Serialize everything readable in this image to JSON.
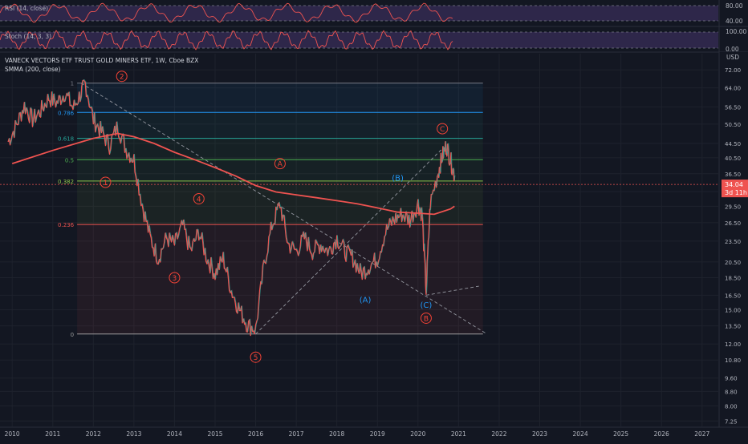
{
  "colors": {
    "background": "#131722",
    "grid": "#1e222d",
    "axis_text": "#b2b5be",
    "candle_up": "#26a69a",
    "candle_down": "#ef5350",
    "smma": "#ef5350",
    "wave_red": "#f44336",
    "wave_blue": "#2196f3",
    "osc_band": "#7e57c2",
    "osc_line": "#ef5350",
    "price_tag": "#ef5350"
  },
  "panes": {
    "rsi": {
      "label": "RSI (14, close)",
      "levels": [
        "80.00",
        "40.00"
      ]
    },
    "stoch": {
      "label": "Stoch (14, 3, 3)",
      "levels": [
        "100.00",
        "0.00"
      ]
    }
  },
  "main": {
    "title": "VANECK VECTORS ETF TRUST GOLD MINERS ETF, 1W, Cboe BZX",
    "indicator": "SMMA (200, close)",
    "currency": "USD",
    "price_label": "34.04",
    "countdown_label": "3d 11h"
  },
  "chart_data": {
    "type": "line",
    "title": "VANECK VECTORS ETF TRUST GOLD MINERS ETF, 1W, Cboe BZX",
    "y_scale": "log",
    "ylim": [
      7.0,
      80.0
    ],
    "xlim": [
      2009.7,
      2027.4
    ],
    "x_ticks": [
      "2010",
      "2011",
      "2012",
      "2013",
      "2014",
      "2015",
      "2016",
      "2017",
      "2018",
      "2019",
      "2020",
      "2021",
      "2022",
      "2023",
      "2024",
      "2025",
      "2026",
      "2027"
    ],
    "y_ticks": [
      "72.00",
      "64.00",
      "56.50",
      "50.50",
      "44.50",
      "40.50",
      "36.50",
      "32.50",
      "29.50",
      "26.50",
      "23.50",
      "20.50",
      "18.50",
      "16.50",
      "15.00",
      "13.50",
      "12.00",
      "10.80",
      "9.60",
      "8.80",
      "8.00",
      "7.25"
    ],
    "price_series": {
      "name": "GDX",
      "x": [
        2009.9,
        2010.1,
        2010.3,
        2010.5,
        2010.7,
        2010.9,
        2011.1,
        2011.3,
        2011.5,
        2011.7,
        2011.8,
        2012.0,
        2012.2,
        2012.4,
        2012.6,
        2012.8,
        2013.0,
        2013.2,
        2013.4,
        2013.6,
        2013.8,
        2014.0,
        2014.2,
        2014.4,
        2014.6,
        2014.8,
        2015.0,
        2015.2,
        2015.4,
        2015.6,
        2015.8,
        2016.0,
        2016.2,
        2016.4,
        2016.6,
        2016.8,
        2017.0,
        2017.2,
        2017.4,
        2017.6,
        2017.8,
        2018.0,
        2018.2,
        2018.4,
        2018.6,
        2018.8,
        2019.0,
        2019.2,
        2019.4,
        2019.6,
        2019.8,
        2020.0,
        2020.1,
        2020.2,
        2020.3,
        2020.5,
        2020.6,
        2020.7,
        2020.8,
        2020.9
      ],
      "y": [
        45,
        50,
        57,
        52,
        55,
        60,
        58,
        62,
        56,
        62,
        66,
        52,
        48,
        44,
        50,
        43,
        40,
        30,
        24,
        21,
        24,
        23,
        26,
        22,
        25,
        21,
        19,
        21,
        17,
        15,
        13.6,
        13.2,
        20,
        26,
        30,
        23,
        22,
        24,
        22,
        23,
        22,
        24,
        22,
        21,
        19,
        20,
        21,
        25,
        27,
        28,
        27,
        30,
        28,
        17,
        30,
        37,
        41,
        44,
        40,
        36
      ]
    },
    "series": [
      {
        "name": "SMMA (200, close)",
        "x": [
          2010.0,
          2011.0,
          2012.0,
          2012.6,
          2013.0,
          2013.5,
          2014.0,
          2014.5,
          2015.0,
          2015.5,
          2016.0,
          2016.5,
          2017.0,
          2017.5,
          2018.0,
          2018.5,
          2019.0,
          2019.5,
          2020.0,
          2020.4,
          2020.8,
          2020.9
        ],
        "y": [
          39,
          42.5,
          46,
          47.5,
          46.5,
          44.5,
          42,
          40,
          38,
          36,
          33.8,
          32.4,
          31.8,
          31.2,
          30.6,
          30.0,
          29.2,
          28.4,
          28.2,
          28.0,
          29.0,
          29.5
        ]
      }
    ],
    "fibonacci": {
      "levels": [
        "1",
        "0.786",
        "0.618",
        "0.5",
        "0.382",
        "0.236",
        "0"
      ],
      "prices": [
        66,
        54.5,
        46,
        40,
        34.8,
        26.2,
        12.8
      ]
    },
    "trendlines": [
      {
        "x": [
          2011.7,
          2021.7
        ],
        "y": [
          66,
          12.8
        ]
      },
      {
        "x": [
          2016.0,
          2020.6
        ],
        "y": [
          12.8,
          43
        ]
      },
      {
        "x": [
          2020.2,
          2021.5
        ],
        "y": [
          16.5,
          17.5
        ]
      }
    ],
    "annotations": [
      {
        "label": "1",
        "x": 2012.3,
        "y": 34.5,
        "style": "red-circle"
      },
      {
        "label": "2",
        "x": 2012.7,
        "y": 69,
        "style": "red-circle"
      },
      {
        "label": "3",
        "x": 2014.0,
        "y": 18.5,
        "style": "red-circle"
      },
      {
        "label": "4",
        "x": 2014.6,
        "y": 31,
        "style": "red-circle"
      },
      {
        "label": "5",
        "x": 2016.0,
        "y": 11,
        "style": "red-circle"
      },
      {
        "label": "A",
        "x": 2016.6,
        "y": 39,
        "style": "red-circle"
      },
      {
        "label": "B",
        "x": 2020.2,
        "y": 14.2,
        "style": "red-circle"
      },
      {
        "label": "C",
        "x": 2020.6,
        "y": 49,
        "style": "red-circle"
      },
      {
        "label": "(A)",
        "x": 2018.7,
        "y": 16,
        "style": "blue-text"
      },
      {
        "label": "(B)",
        "x": 2019.5,
        "y": 35.5,
        "style": "blue-text"
      },
      {
        "label": "(C)",
        "x": 2020.2,
        "y": 15.5,
        "style": "blue-text"
      }
    ],
    "grid": true
  }
}
